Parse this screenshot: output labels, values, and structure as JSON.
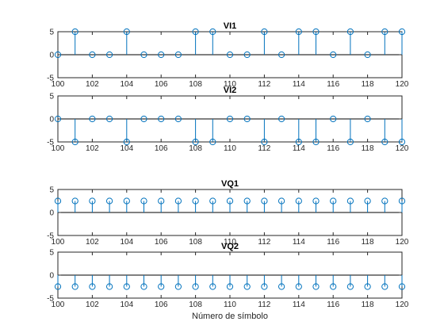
{
  "figure": {
    "xlabel": "Número de símbolo",
    "background": "#ffffff",
    "stem_color": "#0072BD",
    "axis_color": "#262626"
  },
  "chart_data": [
    {
      "type": "stem",
      "title": "VI1",
      "xlim": [
        100,
        120
      ],
      "ylim": [
        -5,
        5
      ],
      "xticks": [
        "100",
        "102",
        "104",
        "106",
        "108",
        "110",
        "112",
        "114",
        "116",
        "118",
        "120"
      ],
      "yticks": [
        "5",
        "0",
        "-5"
      ],
      "x": [
        100,
        101,
        102,
        103,
        104,
        105,
        106,
        107,
        108,
        109,
        110,
        111,
        112,
        113,
        114,
        115,
        116,
        117,
        118,
        119,
        120
      ],
      "values": [
        0,
        5,
        0,
        0,
        5,
        0,
        0,
        0,
        5,
        5,
        0,
        0,
        5,
        0,
        5,
        5,
        0,
        5,
        0,
        5,
        5
      ]
    },
    {
      "type": "stem",
      "title": "VI2",
      "xlim": [
        100,
        120
      ],
      "ylim": [
        -5,
        5
      ],
      "xticks": [
        "100",
        "102",
        "104",
        "106",
        "108",
        "110",
        "112",
        "114",
        "116",
        "118",
        "120"
      ],
      "yticks": [
        "5",
        "0",
        "-5"
      ],
      "x": [
        100,
        101,
        102,
        103,
        104,
        105,
        106,
        107,
        108,
        109,
        110,
        111,
        112,
        113,
        114,
        115,
        116,
        117,
        118,
        119,
        120
      ],
      "values": [
        0,
        -5,
        0,
        0,
        -5,
        0,
        0,
        0,
        -5,
        -5,
        0,
        0,
        -5,
        0,
        -5,
        -5,
        0,
        -5,
        0,
        -5,
        -5
      ]
    },
    {
      "type": "stem",
      "title": "VQ1",
      "xlim": [
        100,
        120
      ],
      "ylim": [
        -5,
        5
      ],
      "xticks": [
        "100",
        "102",
        "104",
        "106",
        "108",
        "110",
        "112",
        "114",
        "116",
        "118",
        "120"
      ],
      "yticks": [
        "5",
        "0",
        "-5"
      ],
      "x": [
        100,
        101,
        102,
        103,
        104,
        105,
        106,
        107,
        108,
        109,
        110,
        111,
        112,
        113,
        114,
        115,
        116,
        117,
        118,
        119,
        120
      ],
      "values": [
        2.5,
        2.5,
        2.5,
        2.5,
        2.5,
        2.5,
        2.5,
        2.5,
        2.5,
        2.5,
        2.5,
        2.5,
        2.5,
        2.5,
        2.5,
        2.5,
        2.5,
        2.5,
        2.5,
        2.5,
        2.5
      ]
    },
    {
      "type": "stem",
      "title": "VQ2",
      "xlim": [
        100,
        120
      ],
      "ylim": [
        -5,
        5
      ],
      "xticks": [
        "100",
        "102",
        "104",
        "106",
        "108",
        "110",
        "112",
        "114",
        "116",
        "118",
        "120"
      ],
      "yticks": [
        "5",
        "0",
        "-5"
      ],
      "x": [
        100,
        101,
        102,
        103,
        104,
        105,
        106,
        107,
        108,
        109,
        110,
        111,
        112,
        113,
        114,
        115,
        116,
        117,
        118,
        119,
        120
      ],
      "values": [
        -2.5,
        -2.5,
        -2.5,
        -2.5,
        -2.5,
        -2.5,
        -2.5,
        -2.5,
        -2.5,
        -2.5,
        -2.5,
        -2.5,
        -2.5,
        -2.5,
        -2.5,
        -2.5,
        -2.5,
        -2.5,
        -2.5,
        -2.5,
        -2.5
      ]
    }
  ]
}
